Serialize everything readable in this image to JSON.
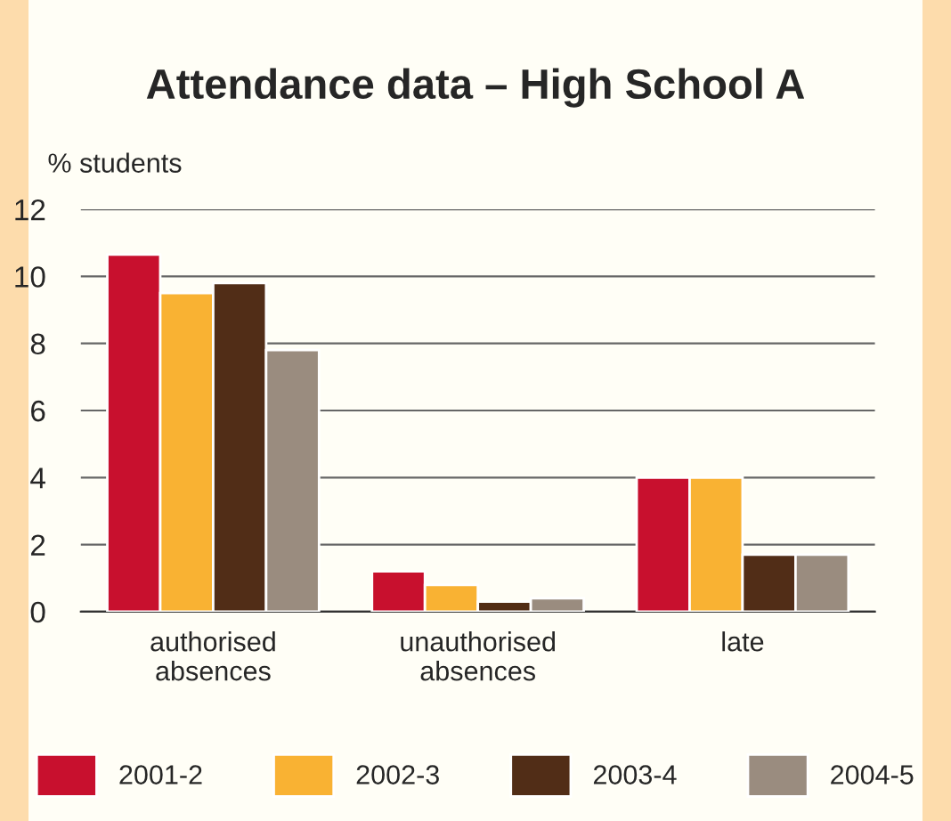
{
  "chart_data": {
    "type": "bar",
    "title": "Attendance data – High School A",
    "ylabel": "% students",
    "categories": [
      "authorised\nabsences",
      "unauthorised\nabsences",
      "late"
    ],
    "series": [
      {
        "name": "2001-2",
        "color": "#c8102e",
        "values": [
          10.65,
          1.2,
          4.0
        ]
      },
      {
        "name": "2002-3",
        "color": "#f9b233",
        "values": [
          9.5,
          0.8,
          4.0
        ]
      },
      {
        "name": "2003-4",
        "color": "#512d17",
        "values": [
          9.8,
          0.3,
          1.7
        ]
      },
      {
        "name": "2004-5",
        "color": "#9a8c7f",
        "values": [
          7.8,
          0.4,
          1.7
        ]
      }
    ],
    "ylim": [
      0,
      12
    ],
    "yticks": [
      0,
      2,
      4,
      6,
      8,
      10,
      12
    ],
    "grid": "y",
    "legend": "bottom"
  }
}
